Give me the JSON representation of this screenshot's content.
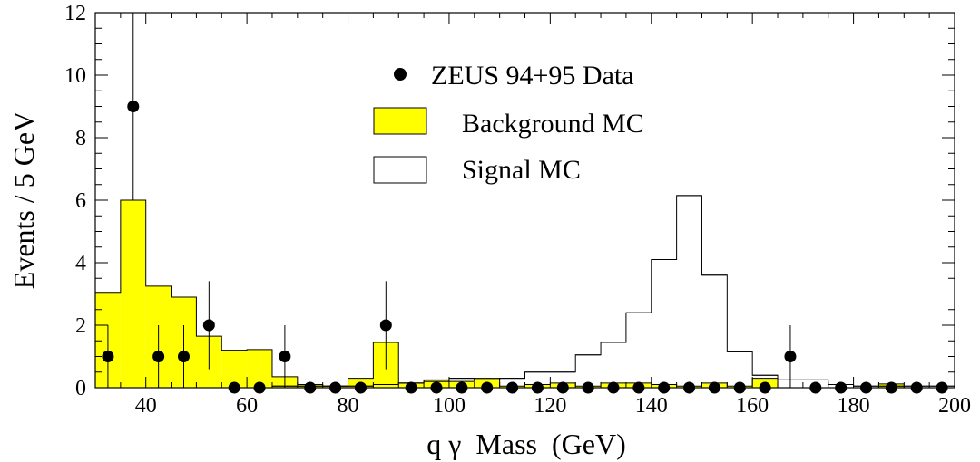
{
  "chart_data": {
    "type": "histogram",
    "title": "",
    "xlabel": "q γ  Mass  (GeV)",
    "ylabel": "Events / 5 GeV",
    "xlim": [
      30,
      200
    ],
    "ylim": [
      0,
      12
    ],
    "xticks": [
      40,
      60,
      80,
      100,
      120,
      140,
      160,
      180,
      200
    ],
    "yticks": [
      0,
      2,
      4,
      6,
      8,
      10,
      12
    ],
    "bin_width": 5,
    "bin_edges_start": [
      30,
      35,
      40,
      45,
      50,
      55,
      60,
      65,
      70,
      75,
      80,
      85,
      90,
      95,
      100,
      105,
      110,
      115,
      120,
      125,
      130,
      135,
      140,
      145,
      150,
      155,
      160,
      165,
      170,
      175,
      180,
      185,
      190,
      195
    ],
    "legend": {
      "position": "top-center",
      "entries": [
        {
          "label": "ZEUS 94+95 Data",
          "style": "marker"
        },
        {
          "label": "Background MC",
          "style": "filled-box"
        },
        {
          "label": "Signal MC",
          "style": "open-box"
        }
      ]
    },
    "series": [
      {
        "name": "Background MC",
        "style": "filled-histogram",
        "color": "#ffff00",
        "values": [
          3.05,
          6.0,
          3.25,
          2.9,
          1.65,
          1.2,
          1.22,
          0.35,
          0.1,
          0.05,
          0.3,
          1.45,
          0.15,
          0.25,
          0.2,
          0.3,
          0.05,
          0.1,
          0.15,
          0.05,
          0.15,
          0.15,
          0.1,
          0.05,
          0.15,
          0.05,
          0.3,
          0.0,
          0.0,
          0.0,
          0.0,
          0.12,
          0.0,
          0.0
        ]
      },
      {
        "name": "Signal MC",
        "style": "open-histogram",
        "color": "#000000",
        "values": [
          0.0,
          0.0,
          0.0,
          0.0,
          0.0,
          0.0,
          0.0,
          0.05,
          0.05,
          0.05,
          0.05,
          0.1,
          0.15,
          0.2,
          0.3,
          0.25,
          0.3,
          0.5,
          0.5,
          1.05,
          1.45,
          2.4,
          4.1,
          6.15,
          3.6,
          1.15,
          0.4,
          0.25,
          0.25,
          0.1,
          0.05,
          0.05,
          0.05,
          0.05
        ]
      },
      {
        "name": "ZEUS 94+95 Data",
        "style": "points-with-errors",
        "color": "#000000",
        "x": [
          32.5,
          37.5,
          42.5,
          47.5,
          52.5,
          57.5,
          62.5,
          67.5,
          72.5,
          77.5,
          82.5,
          87.5,
          92.5,
          97.5,
          102.5,
          107.5,
          112.5,
          117.5,
          122.5,
          127.5,
          132.5,
          137.5,
          142.5,
          147.5,
          152.5,
          157.5,
          162.5,
          167.5,
          172.5,
          177.5,
          182.5,
          187.5,
          192.5,
          197.5
        ],
        "y": [
          1,
          9,
          1,
          1,
          2,
          0,
          0,
          1,
          0,
          0,
          0,
          2,
          0,
          0,
          0,
          0,
          0,
          0,
          0,
          0,
          0,
          0,
          0,
          0,
          0,
          0,
          0,
          1,
          0,
          0,
          0,
          0,
          0,
          0
        ],
        "err_low": [
          1,
          3,
          1,
          1,
          1.41,
          0,
          0,
          1,
          0,
          0,
          0,
          1.41,
          0,
          0,
          0,
          0,
          0,
          0,
          0,
          0,
          0,
          0,
          0,
          0,
          0,
          0,
          0,
          1,
          0,
          0,
          0,
          0,
          0,
          0
        ],
        "err_high": [
          1,
          3,
          1,
          1,
          1.41,
          0,
          0,
          1,
          0,
          0,
          0,
          1.41,
          0,
          0,
          0,
          0,
          0,
          0,
          0,
          0,
          0,
          0,
          0,
          0,
          0,
          0,
          0,
          1,
          0,
          0,
          0,
          0,
          0,
          0
        ]
      }
    ]
  }
}
